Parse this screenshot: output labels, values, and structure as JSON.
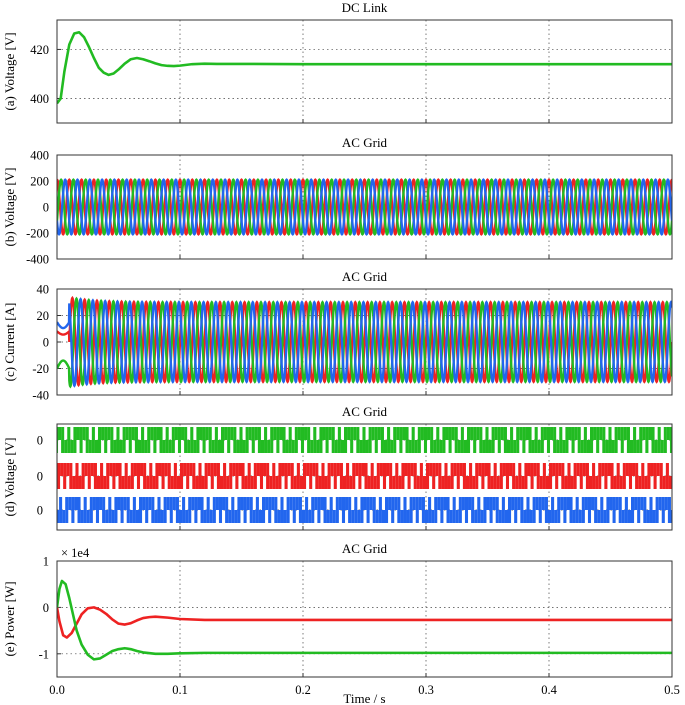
{
  "chart_data": [
    {
      "panel": "a",
      "type": "line",
      "title": "DC Link",
      "ylabel": "(a) Voltage [V]",
      "xlim": [
        0,
        0.5
      ],
      "ylim": [
        390,
        432
      ],
      "yticks": [
        400,
        420
      ],
      "grid": true,
      "series": [
        {
          "color": "#22bb22",
          "x": [
            0,
            0.003,
            0.006,
            0.01,
            0.014,
            0.018,
            0.022,
            0.026,
            0.03,
            0.034,
            0.038,
            0.042,
            0.046,
            0.05,
            0.055,
            0.06,
            0.065,
            0.07,
            0.075,
            0.08,
            0.085,
            0.09,
            0.095,
            0.1,
            0.11,
            0.12,
            0.13,
            0.15,
            0.2,
            0.3,
            0.4,
            0.5
          ],
          "y": [
            398,
            400,
            411,
            422,
            426.5,
            427,
            425,
            421,
            416.5,
            412.5,
            410.5,
            409.6,
            410.2,
            411.8,
            414.2,
            416,
            416.5,
            416,
            415.2,
            414.3,
            413.6,
            413.3,
            413.2,
            413.4,
            414,
            414.2,
            414.1,
            414.1,
            414,
            414,
            414,
            414
          ]
        }
      ]
    },
    {
      "panel": "b",
      "type": "line",
      "title": "AC Grid",
      "ylabel": "(b) Voltage [V]",
      "xlim": [
        0,
        0.5
      ],
      "ylim": [
        -400,
        400
      ],
      "yticks": [
        -400,
        -200,
        0,
        200,
        400
      ],
      "grid": true,
      "series": [
        {
          "color": "#ee2222",
          "waveform": "sine",
          "frequency_hz": 100,
          "amplitude": 210,
          "phase_deg": 90
        },
        {
          "color": "#22bb22",
          "waveform": "sine",
          "frequency_hz": 100,
          "amplitude": 210,
          "phase_deg": -30
        },
        {
          "color": "#2266ee",
          "waveform": "sine",
          "frequency_hz": 100,
          "amplitude": 210,
          "phase_deg": 210
        }
      ]
    },
    {
      "panel": "c",
      "type": "line",
      "title": "AC Grid",
      "ylabel": "(c) Current [A]",
      "xlim": [
        0,
        0.5
      ],
      "ylim": [
        -40,
        40
      ],
      "yticks": [
        -40,
        -20,
        0,
        20,
        40
      ],
      "grid": true,
      "series": [
        {
          "color": "#ee2222",
          "waveform": "sine",
          "frequency_hz": 100,
          "amplitude": 30,
          "phase_deg": 0,
          "start_x": 0.01,
          "initial_value": 8
        },
        {
          "color": "#22bb22",
          "waveform": "sine",
          "frequency_hz": 100,
          "amplitude": 30,
          "phase_deg": -120,
          "start_x": 0.01,
          "initial_value": -20
        },
        {
          "color": "#2266ee",
          "waveform": "sine",
          "frequency_hz": 100,
          "amplitude": 30,
          "phase_deg": 120,
          "start_x": 0.01,
          "initial_value": 15
        }
      ]
    },
    {
      "panel": "d",
      "type": "line",
      "title": "AC Grid",
      "ylabel": "(d) Voltage [V]",
      "xlim": [
        0,
        0.5
      ],
      "ytick_labels": [
        "0",
        "0",
        "0"
      ],
      "grid": true,
      "series": [
        {
          "color": "#22bb22",
          "waveform": "pwm",
          "frequency_hz": 50,
          "phase_deg": -120
        },
        {
          "color": "#ee2222",
          "waveform": "pwm",
          "frequency_hz": 50,
          "phase_deg": 0
        },
        {
          "color": "#2266ee",
          "waveform": "pwm",
          "frequency_hz": 50,
          "phase_deg": 120
        }
      ]
    },
    {
      "panel": "e",
      "type": "line",
      "title": "AC Grid",
      "ylabel": "(e) Power [W]",
      "scale_note": "× 1e4",
      "xlabel": "Time / s",
      "xlim": [
        0,
        0.5
      ],
      "ylim": [
        -1.5,
        1
      ],
      "yticks": [
        -1,
        0,
        1
      ],
      "xticks": [
        0.0,
        0.1,
        0.2,
        0.3,
        0.4,
        0.5
      ],
      "xtick_labels": [
        "0.0",
        "0.1",
        "0.2",
        "0.3",
        "0.4",
        "0.5"
      ],
      "grid": true,
      "series": [
        {
          "color": "#ee2222",
          "x": [
            0,
            0.002,
            0.005,
            0.008,
            0.012,
            0.016,
            0.02,
            0.025,
            0.03,
            0.035,
            0.04,
            0.045,
            0.05,
            0.055,
            0.06,
            0.065,
            0.07,
            0.075,
            0.08,
            0.09,
            0.1,
            0.12,
            0.15,
            0.2,
            0.3,
            0.4,
            0.5
          ],
          "y": [
            0,
            -0.3,
            -0.6,
            -0.65,
            -0.55,
            -0.35,
            -0.15,
            -0.02,
            0.0,
            -0.05,
            -0.14,
            -0.26,
            -0.35,
            -0.37,
            -0.34,
            -0.28,
            -0.23,
            -0.21,
            -0.2,
            -0.22,
            -0.25,
            -0.27,
            -0.27,
            -0.27,
            -0.27,
            -0.27,
            -0.27
          ]
        },
        {
          "color": "#22bb22",
          "x": [
            0,
            0.002,
            0.004,
            0.007,
            0.01,
            0.013,
            0.016,
            0.02,
            0.025,
            0.03,
            0.035,
            0.04,
            0.045,
            0.05,
            0.055,
            0.06,
            0.065,
            0.07,
            0.08,
            0.09,
            0.1,
            0.12,
            0.15,
            0.2,
            0.3,
            0.4,
            0.5
          ],
          "y": [
            0,
            0.4,
            0.57,
            0.5,
            0.2,
            -0.15,
            -0.5,
            -0.8,
            -1.02,
            -1.12,
            -1.1,
            -1.02,
            -0.94,
            -0.9,
            -0.88,
            -0.9,
            -0.94,
            -0.97,
            -1.0,
            -1.0,
            -0.99,
            -0.98,
            -0.98,
            -0.98,
            -0.98,
            -0.98,
            -0.98
          ]
        }
      ]
    }
  ]
}
